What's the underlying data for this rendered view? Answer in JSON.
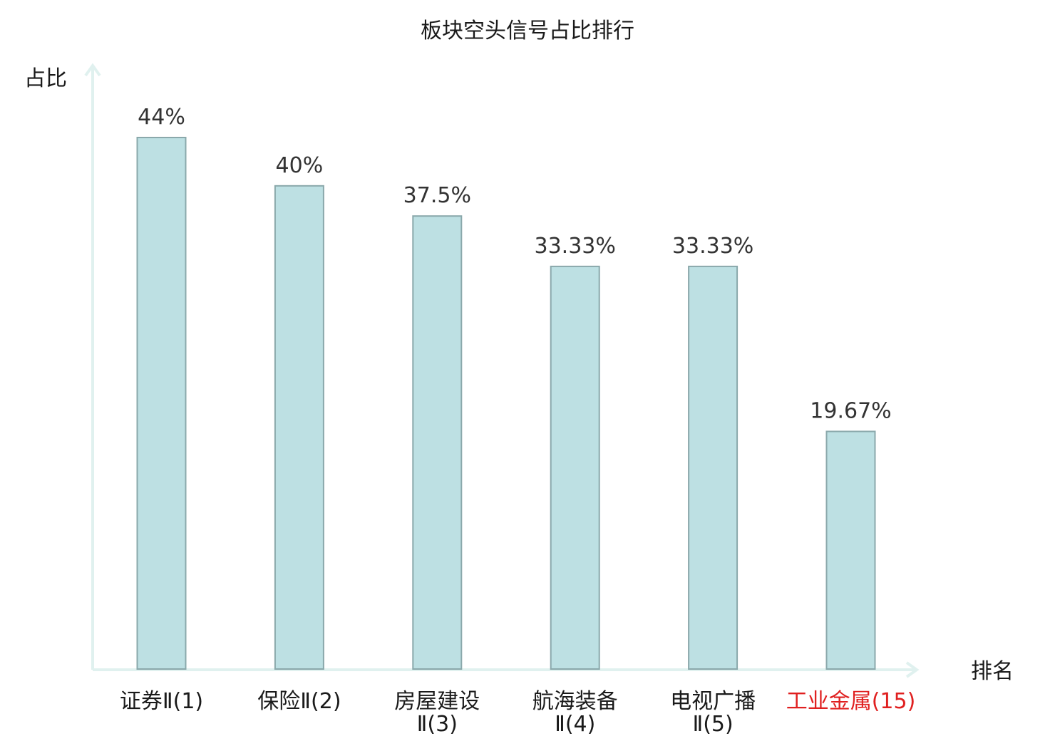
{
  "chart_data": {
    "type": "bar",
    "title": "板块空头信号占比排行",
    "ylabel": "占比",
    "xlabel": "排名",
    "categories": [
      [
        "证券Ⅱ(1)"
      ],
      [
        "保险Ⅱ(2)"
      ],
      [
        "房屋建设",
        "Ⅱ(3)"
      ],
      [
        "航海装备",
        "Ⅱ(4)"
      ],
      [
        "电视广播",
        "Ⅱ(5)"
      ],
      [
        "工业金属(15)"
      ]
    ],
    "values": [
      44,
      40,
      37.5,
      33.33,
      33.33,
      19.67
    ],
    "value_labels": [
      "44%",
      "40%",
      "37.5%",
      "33.33%",
      "33.33%",
      "19.67%"
    ],
    "highlight_index": 5,
    "ylim": [
      0,
      50
    ],
    "grid": false,
    "legend": false,
    "colors": {
      "bar_fill": "#bde0e3",
      "bar_stroke": "#8aa8ab",
      "axis": "#e0f1ef",
      "highlight_text": "#e02020",
      "text": "#1a1a1a"
    }
  }
}
